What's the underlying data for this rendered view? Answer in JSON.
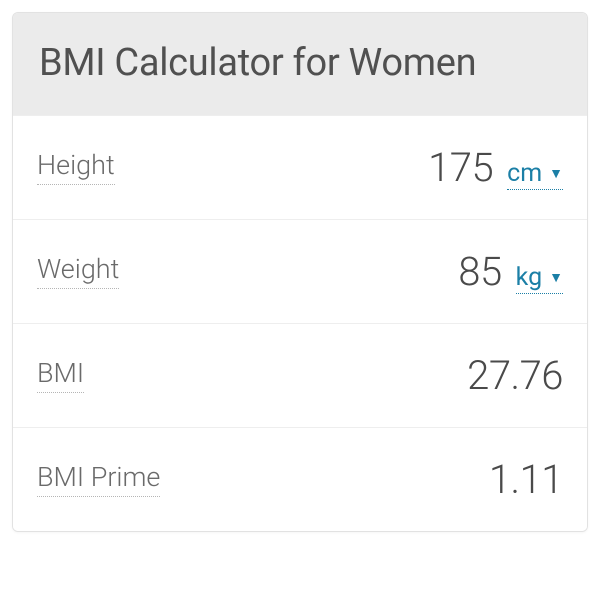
{
  "header": {
    "title": "BMI Calculator for Women"
  },
  "rows": {
    "height": {
      "label": "Height",
      "value": "175",
      "unit": "cm"
    },
    "weight": {
      "label": "Weight",
      "value": "85",
      "unit": "kg"
    },
    "bmi": {
      "label": "BMI",
      "value": "27.76"
    },
    "bmi_prime": {
      "label": "BMI Prime",
      "value": "1.11"
    }
  },
  "colors": {
    "header_bg": "#ebebeb",
    "border": "#e2e2e2",
    "row_border": "#eeeeee",
    "title_color": "#505050",
    "label_color": "#6a6a6a",
    "value_color": "#4a4a4a",
    "unit_color": "#1b7fa6",
    "dotted_underline": "#b5b5b5"
  },
  "typography": {
    "title_fontsize": 38,
    "label_fontsize": 27,
    "value_fontsize": 40,
    "unit_fontsize": 25,
    "font_weight_light": 300
  }
}
